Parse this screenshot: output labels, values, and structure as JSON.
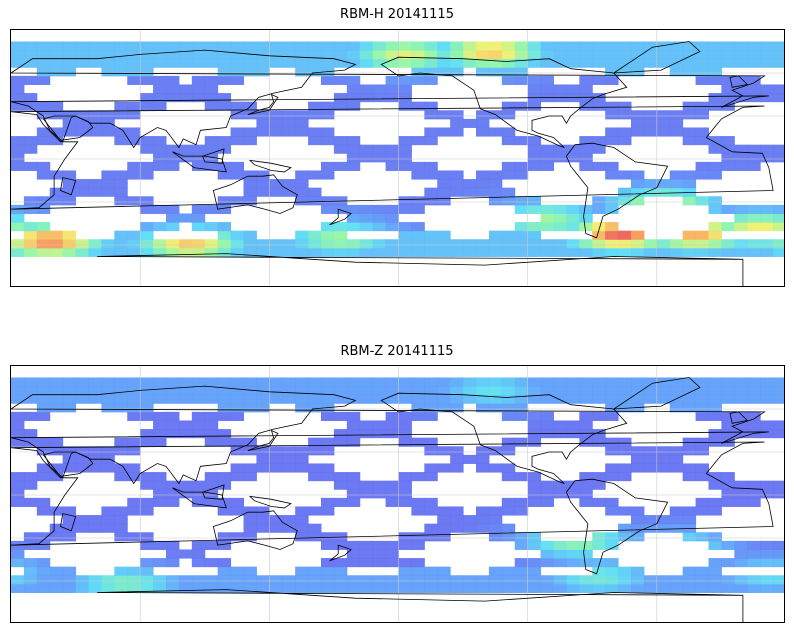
{
  "panels": [
    {
      "title": "RBM-H 20141115",
      "hot_zones": [
        {
          "lon": 35,
          "lat": -60,
          "level": 0.9
        },
        {
          "lon": 100,
          "lat": -62,
          "level": 0.8
        },
        {
          "lon": 5,
          "lat": -52,
          "level": 0.75
        },
        {
          "lon": 170,
          "lat": -58,
          "level": 0.6
        },
        {
          "lon": 200,
          "lat": 70,
          "level": 0.7
        },
        {
          "lon": 240,
          "lat": 72,
          "level": 0.8
        },
        {
          "lon": 300,
          "lat": -55,
          "level": 0.95
        },
        {
          "lon": 335,
          "lat": -55,
          "level": 0.85
        },
        {
          "lon": 320,
          "lat": -35,
          "level": 0.7
        },
        {
          "lon": 265,
          "lat": -45,
          "level": 0.6
        }
      ]
    },
    {
      "title": "RBM-Z 20141115",
      "hot_zones": [
        {
          "lon": 280,
          "lat": -35,
          "level": 0.6
        },
        {
          "lon": 325,
          "lat": -40,
          "level": 0.55
        },
        {
          "lon": 70,
          "lat": -65,
          "level": 0.55
        },
        {
          "lon": 240,
          "lat": 70,
          "level": 0.45
        },
        {
          "lon": 10,
          "lat": -58,
          "level": 0.45
        },
        {
          "lon": 290,
          "lat": -60,
          "level": 0.5
        }
      ]
    }
  ]
}
